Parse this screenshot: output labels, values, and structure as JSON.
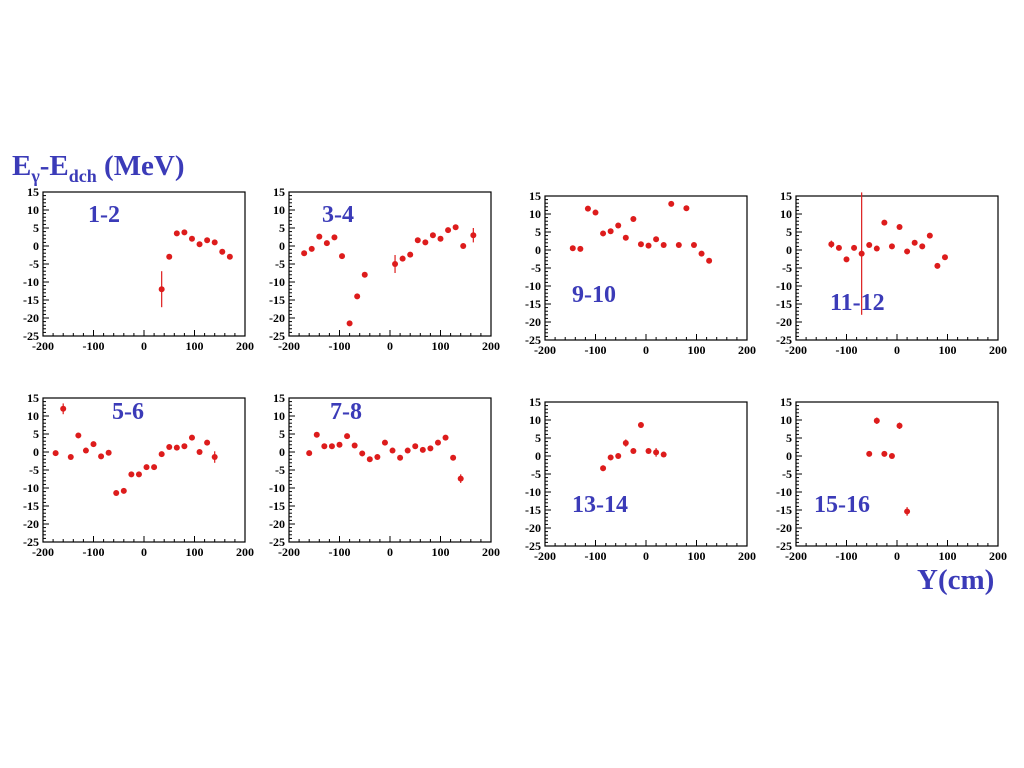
{
  "page": {
    "ylabel": {
      "e": "E",
      "gamma": "γ",
      "dash": "-E",
      "dch": "dch",
      "unit": " (MeV)"
    },
    "xlabel": "Y(cm)",
    "colors": {
      "label": "#3b3bb8",
      "marker": "#dd1c1c",
      "axis": "#000000"
    }
  },
  "chart_data": [
    {
      "type": "scatter",
      "label": "1-2",
      "xlim": [
        -200,
        200
      ],
      "ylim": [
        -25,
        15
      ],
      "xticks": [
        "-200",
        "-100",
        "0",
        "100",
        "200"
      ],
      "yticks": [
        "15",
        "10",
        "5",
        "0",
        "-5",
        "-10",
        "-15",
        "-20",
        "-25"
      ],
      "points": [
        [
          35,
          -12,
          5
        ],
        [
          50,
          -3,
          0.5
        ],
        [
          65,
          3.5,
          0.5
        ],
        [
          80,
          3.8,
          0.6
        ],
        [
          95,
          2,
          0.4
        ],
        [
          110,
          0.5,
          0.4
        ],
        [
          125,
          1.6,
          0.4
        ],
        [
          140,
          1,
          0.4
        ],
        [
          155,
          -1.6,
          0.5
        ],
        [
          170,
          -3,
          0.6
        ]
      ]
    },
    {
      "type": "scatter",
      "label": "3-4",
      "xlim": [
        -200,
        200
      ],
      "ylim": [
        -25,
        15
      ],
      "xticks": [
        "-200",
        "-100",
        "0",
        "100",
        "200"
      ],
      "yticks": [
        "15",
        "10",
        "5",
        "0",
        "-5",
        "-10",
        "-15",
        "-20",
        "-25"
      ],
      "points": [
        [
          -170,
          -2,
          0.4
        ],
        [
          -155,
          -0.8,
          0.4
        ],
        [
          -140,
          2.6,
          0.4
        ],
        [
          -125,
          0.8,
          0.4
        ],
        [
          -110,
          2.4,
          0.4
        ],
        [
          -95,
          -2.8,
          0.4
        ],
        [
          -80,
          -21.5,
          0.6
        ],
        [
          -65,
          -14,
          0.6
        ],
        [
          -50,
          -8,
          0.5
        ],
        [
          10,
          -5,
          2.5
        ],
        [
          25,
          -3.5,
          0.8
        ],
        [
          40,
          -2.4,
          0.5
        ],
        [
          55,
          1.6,
          0.5
        ],
        [
          70,
          1,
          0.4
        ],
        [
          85,
          3,
          0.4
        ],
        [
          100,
          2,
          0.4
        ],
        [
          115,
          4.4,
          0.5
        ],
        [
          130,
          5.2,
          0.5
        ],
        [
          145,
          0,
          0.5
        ],
        [
          165,
          3,
          2
        ]
      ]
    },
    {
      "type": "scatter",
      "label": "9-10",
      "xlim": [
        -200,
        200
      ],
      "ylim": [
        -25,
        15
      ],
      "xticks": [
        "-200",
        "-100",
        "0",
        "100",
        "200"
      ],
      "yticks": [
        "15",
        "10",
        "5",
        "0",
        "-5",
        "-10",
        "-15",
        "-20",
        "-25"
      ],
      "points": [
        [
          -145,
          0.5,
          0.4
        ],
        [
          -130,
          0.3,
          0.4
        ],
        [
          -115,
          11.5,
          0.5
        ],
        [
          -100,
          10.4,
          0.5
        ],
        [
          -85,
          4.6,
          0.4
        ],
        [
          -70,
          5.2,
          0.4
        ],
        [
          -55,
          6.8,
          0.4
        ],
        [
          -40,
          3.4,
          0.4
        ],
        [
          -25,
          8.6,
          0.5
        ],
        [
          -10,
          1.6,
          0.4
        ],
        [
          5,
          1.2,
          0.4
        ],
        [
          20,
          3,
          0.4
        ],
        [
          35,
          1.4,
          0.4
        ],
        [
          50,
          12.8,
          0.5
        ],
        [
          65,
          1.4,
          0.4
        ],
        [
          80,
          11.6,
          0.5
        ],
        [
          95,
          1.4,
          0.4
        ],
        [
          110,
          -1,
          0.4
        ],
        [
          125,
          -3,
          0.6
        ]
      ]
    },
    {
      "type": "scatter",
      "label": "11-12",
      "xlim": [
        -200,
        200
      ],
      "ylim": [
        -25,
        15
      ],
      "xticks": [
        "-200",
        "-100",
        "0",
        "100",
        "200"
      ],
      "yticks": [
        "15",
        "10",
        "5",
        "0",
        "-5",
        "-10",
        "-15",
        "-20",
        "-25"
      ],
      "points": [
        [
          -130,
          1.6,
          1
        ],
        [
          -115,
          0.6,
          0.4
        ],
        [
          -100,
          -2.6,
          0.4
        ],
        [
          -85,
          0.6,
          0.4
        ],
        [
          -70,
          -1,
          17
        ],
        [
          -55,
          1.4,
          0.4
        ],
        [
          -40,
          0.4,
          0.4
        ],
        [
          -25,
          7.6,
          0.5
        ],
        [
          -10,
          1,
          0.4
        ],
        [
          5,
          6.4,
          0.5
        ],
        [
          20,
          -0.4,
          0.4
        ],
        [
          35,
          2,
          0.4
        ],
        [
          50,
          1,
          0.4
        ],
        [
          65,
          4,
          0.4
        ],
        [
          80,
          -4.4,
          0.4
        ],
        [
          95,
          -2,
          0.5
        ]
      ]
    },
    {
      "type": "scatter",
      "label": "5-6",
      "xlim": [
        -200,
        200
      ],
      "ylim": [
        -25,
        15
      ],
      "xticks": [
        "-200",
        "-100",
        "0",
        "100",
        "200"
      ],
      "yticks": [
        "15",
        "10",
        "5",
        "0",
        "-5",
        "-10",
        "-15",
        "-20",
        "-25"
      ],
      "points": [
        [
          -175,
          -0.3,
          0.4
        ],
        [
          -160,
          12,
          1.5
        ],
        [
          -145,
          -1.4,
          0.4
        ],
        [
          -130,
          4.6,
          0.4
        ],
        [
          -115,
          0.4,
          0.4
        ],
        [
          -100,
          2.2,
          0.4
        ],
        [
          -85,
          -1.2,
          0.4
        ],
        [
          -70,
          -0.2,
          0.4
        ],
        [
          -55,
          -11.4,
          0.5
        ],
        [
          -40,
          -10.8,
          0.5
        ],
        [
          -25,
          -6.2,
          0.5
        ],
        [
          -10,
          -6.2,
          0.5
        ],
        [
          5,
          -4.2,
          0.4
        ],
        [
          20,
          -4.2,
          0.4
        ],
        [
          35,
          -0.6,
          0.4
        ],
        [
          50,
          1.4,
          0.4
        ],
        [
          65,
          1.2,
          0.4
        ],
        [
          80,
          1.6,
          0.4
        ],
        [
          95,
          4,
          0.4
        ],
        [
          110,
          0,
          0.4
        ],
        [
          125,
          2.6,
          0.4
        ],
        [
          140,
          -1.4,
          1.6
        ]
      ]
    },
    {
      "type": "scatter",
      "label": "7-8",
      "xlim": [
        -200,
        200
      ],
      "ylim": [
        -25,
        15
      ],
      "xticks": [
        "-200",
        "-100",
        "0",
        "100",
        "200"
      ],
      "yticks": [
        "15",
        "10",
        "5",
        "0",
        "-5",
        "-10",
        "-15",
        "-20",
        "-25"
      ],
      "points": [
        [
          -160,
          -0.3,
          0.4
        ],
        [
          -145,
          4.8,
          0.4
        ],
        [
          -130,
          1.6,
          0.4
        ],
        [
          -115,
          1.6,
          0.4
        ],
        [
          -100,
          2,
          0.4
        ],
        [
          -85,
          4.4,
          0.4
        ],
        [
          -70,
          1.8,
          0.4
        ],
        [
          -55,
          -0.4,
          0.4
        ],
        [
          -40,
          -2,
          0.4
        ],
        [
          -25,
          -1.4,
          0.4
        ],
        [
          -10,
          2.6,
          0.4
        ],
        [
          5,
          0.4,
          0.4
        ],
        [
          20,
          -1.6,
          0.4
        ],
        [
          35,
          0.4,
          0.4
        ],
        [
          50,
          1.6,
          0.4
        ],
        [
          65,
          0.6,
          0.4
        ],
        [
          80,
          1,
          0.4
        ],
        [
          95,
          2.6,
          0.4
        ],
        [
          110,
          4,
          0.4
        ],
        [
          125,
          -1.6,
          0.4
        ],
        [
          140,
          -7.4,
          1.2
        ]
      ]
    },
    {
      "type": "scatter",
      "label": "13-14",
      "xlim": [
        -200,
        200
      ],
      "ylim": [
        -25,
        15
      ],
      "xticks": [
        "-200",
        "-100",
        "0",
        "100",
        "200"
      ],
      "yticks": [
        "15",
        "10",
        "5",
        "0",
        "-5",
        "-10",
        "-15",
        "-20",
        "-25"
      ],
      "points": [
        [
          -85,
          -3.4,
          0.8
        ],
        [
          -70,
          -0.4,
          0.4
        ],
        [
          -55,
          0,
          0.4
        ],
        [
          -40,
          3.6,
          1
        ],
        [
          -25,
          1.4,
          0.4
        ],
        [
          -10,
          8.6,
          0.8
        ],
        [
          5,
          1.4,
          0.4
        ],
        [
          20,
          1,
          1.2
        ],
        [
          35,
          0.4,
          0.4
        ]
      ]
    },
    {
      "type": "scatter",
      "label": "15-16",
      "xlim": [
        -200,
        200
      ],
      "ylim": [
        -25,
        15
      ],
      "xticks": [
        "-200",
        "-100",
        "0",
        "100",
        "200"
      ],
      "yticks": [
        "15",
        "10",
        "5",
        "0",
        "-5",
        "-10",
        "-15",
        "-20",
        "-25"
      ],
      "points": [
        [
          -55,
          0.6,
          0.4
        ],
        [
          -40,
          9.8,
          0.9
        ],
        [
          -25,
          0.6,
          0.4
        ],
        [
          -10,
          0,
          0.4
        ],
        [
          5,
          8.4,
          0.9
        ],
        [
          20,
          -15.4,
          1.2
        ]
      ]
    }
  ]
}
